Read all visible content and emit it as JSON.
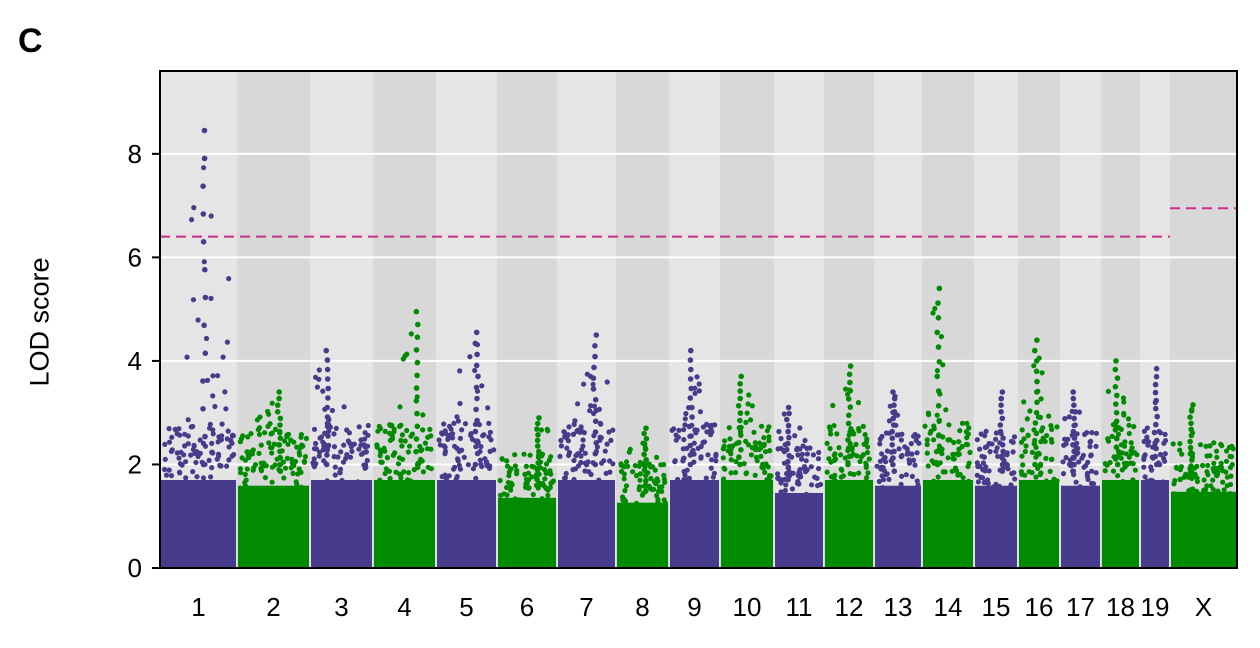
{
  "panel_label": "C",
  "chart_data": {
    "type": "scatter",
    "title": "",
    "xlabel": "",
    "ylabel": "LOD score",
    "ylim": [
      0,
      9.6
    ],
    "yticks": [
      0,
      2,
      4,
      6,
      8
    ],
    "grid": true,
    "legend": "none",
    "colors": {
      "odd": "#473C8B",
      "even": "#008B00",
      "threshold": "#CC2E8C"
    },
    "chromosomes": [
      {
        "label": "1",
        "peak": 8.45
      },
      {
        "label": "2",
        "peak": 3.4
      },
      {
        "label": "3",
        "peak": 4.2
      },
      {
        "label": "4",
        "peak": 4.95
      },
      {
        "label": "5",
        "peak": 4.55
      },
      {
        "label": "6",
        "peak": 2.9
      },
      {
        "label": "7",
        "peak": 4.5
      },
      {
        "label": "8",
        "peak": 2.7
      },
      {
        "label": "9",
        "peak": 4.2
      },
      {
        "label": "10",
        "peak": 3.7
      },
      {
        "label": "11",
        "peak": 3.1
      },
      {
        "label": "12",
        "peak": 3.9
      },
      {
        "label": "13",
        "peak": 3.4
      },
      {
        "label": "14",
        "peak": 5.4
      },
      {
        "label": "15",
        "peak": 3.4
      },
      {
        "label": "16",
        "peak": 4.4
      },
      {
        "label": "17",
        "peak": 3.4
      },
      {
        "label": "18",
        "peak": 4.0
      },
      {
        "label": "19",
        "peak": 3.85
      },
      {
        "label": "X",
        "peak": 3.15
      }
    ],
    "thresholds": [
      {
        "region": "autosomes",
        "value": 6.4
      },
      {
        "region": "X",
        "value": 6.95
      }
    ]
  }
}
